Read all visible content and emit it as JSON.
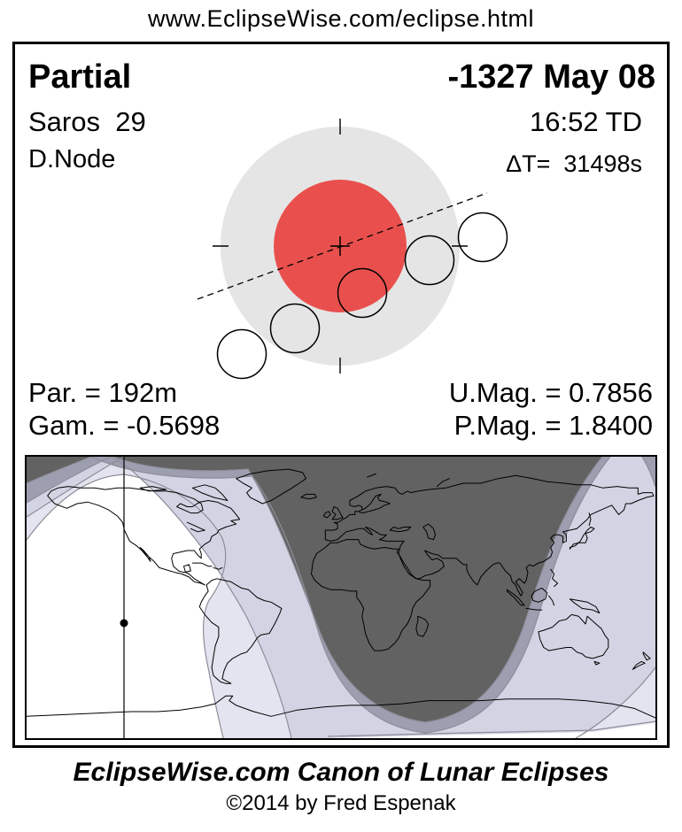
{
  "header": {
    "url": "www.EclipseWise.com/eclipse.html"
  },
  "card": {
    "eclipse_type": "Partial",
    "saros": "Saros  29",
    "node": "D.Node",
    "date": "-1327 May 08",
    "time": "16:52 TD",
    "delta_t": "ΔT=  31498s",
    "stats": {
      "parallax": "Par. = 192m",
      "gamma": "Gam. = -0.5698",
      "umbral_magnitude": "U.Mag. = 0.7856",
      "penumbral_magnitude": "P.Mag. = 1.8400"
    }
  },
  "footer": {
    "title": "EclipseWise.com Canon of Lunar Eclipses",
    "copyright": "©2014 by Fred Espenak"
  },
  "colors": {
    "umbra_red": "#e9504d",
    "penumbra_gray": "#e5e5e5",
    "zone_light1": "#e3e4ef",
    "zone_light2": "#d3d4e3",
    "zone_medium": "#9d9eb0",
    "zone_dark": "#626262",
    "zone_boundary": "#8d8d99",
    "coastline": "#000000"
  }
}
